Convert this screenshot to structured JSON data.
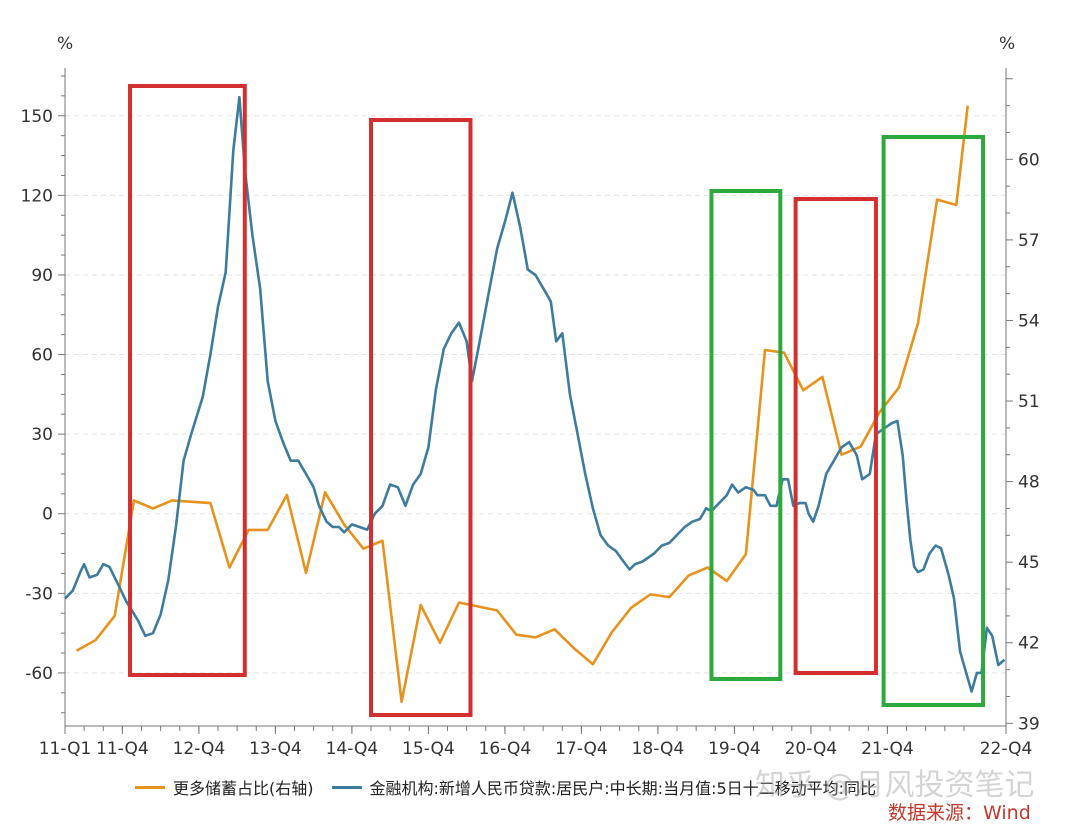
{
  "chart_data": {
    "type": "line",
    "left_axis": {
      "unit": "%",
      "ticks": [
        -60,
        -30,
        0,
        30,
        60,
        90,
        120,
        150
      ],
      "range": [
        -80,
        168
      ]
    },
    "right_axis": {
      "unit": "%",
      "ticks": [
        39,
        42,
        45,
        48,
        51,
        54,
        57,
        60
      ],
      "range": [
        38.9,
        63.4
      ]
    },
    "x_ticks": [
      "11-Q1",
      "11-Q4",
      "12-Q4",
      "13-Q4",
      "14-Q4",
      "15-Q4",
      "16-Q4",
      "17-Q4",
      "18-Q4",
      "19-Q4",
      "20-Q4",
      "21-Q4",
      "22-Q4"
    ],
    "x_range": [
      2011.0,
      2022.8
    ],
    "series": [
      {
        "name": "更多储蓄占比(右轴)",
        "axis": "right",
        "color": "#E8921E",
        "points": [
          [
            2011.15,
            41.7
          ],
          [
            2011.4,
            42.1
          ],
          [
            2011.65,
            43.0
          ],
          [
            2011.9,
            47.3
          ],
          [
            2012.15,
            47.0
          ],
          [
            2012.4,
            47.3
          ],
          [
            2012.9,
            47.2
          ],
          [
            2013.15,
            44.8
          ],
          [
            2013.4,
            46.2
          ],
          [
            2013.65,
            46.2
          ],
          [
            2013.9,
            47.5
          ],
          [
            2014.15,
            44.6
          ],
          [
            2014.4,
            47.6
          ],
          [
            2014.65,
            46.4
          ],
          [
            2014.9,
            45.5
          ],
          [
            2015.15,
            45.8
          ],
          [
            2015.4,
            39.8
          ],
          [
            2015.65,
            43.4
          ],
          [
            2015.9,
            42.0
          ],
          [
            2016.15,
            43.5
          ],
          [
            2016.65,
            43.2
          ],
          [
            2016.9,
            42.3
          ],
          [
            2017.15,
            42.2
          ],
          [
            2017.4,
            42.5
          ],
          [
            2017.65,
            41.8
          ],
          [
            2017.9,
            41.2
          ],
          [
            2018.15,
            42.4
          ],
          [
            2018.4,
            43.3
          ],
          [
            2018.65,
            43.8
          ],
          [
            2018.9,
            43.7
          ],
          [
            2019.15,
            44.5
          ],
          [
            2019.4,
            44.8
          ],
          [
            2019.65,
            44.3
          ],
          [
            2019.9,
            45.3
          ],
          [
            2020.15,
            52.9
          ],
          [
            2020.4,
            52.8
          ],
          [
            2020.65,
            51.4
          ],
          [
            2020.9,
            51.9
          ],
          [
            2021.15,
            49.0
          ],
          [
            2021.4,
            49.3
          ],
          [
            2021.65,
            50.6
          ],
          [
            2021.9,
            51.5
          ],
          [
            2022.15,
            53.9
          ],
          [
            2022.4,
            58.5
          ],
          [
            2022.65,
            58.3
          ],
          [
            2022.8,
            62.0
          ]
        ]
      },
      {
        "name": "金融机构:新增人民币贷款:居民户:中长期:当月值:5日十二移动平均:同比",
        "axis": "left",
        "color": "#3D7C9F",
        "points": [
          [
            2011.0,
            -32
          ],
          [
            2011.1,
            -29
          ],
          [
            2011.2,
            -22
          ],
          [
            2011.25,
            -19
          ],
          [
            2011.32,
            -24
          ],
          [
            2011.42,
            -23
          ],
          [
            2011.5,
            -19
          ],
          [
            2011.58,
            -20
          ],
          [
            2011.7,
            -27
          ],
          [
            2011.8,
            -33
          ],
          [
            2011.95,
            -40
          ],
          [
            2012.05,
            -46
          ],
          [
            2012.15,
            -45
          ],
          [
            2012.25,
            -38
          ],
          [
            2012.35,
            -25
          ],
          [
            2012.45,
            -5
          ],
          [
            2012.55,
            20
          ],
          [
            2012.65,
            30
          ],
          [
            2012.8,
            44
          ],
          [
            2012.9,
            60
          ],
          [
            2013.0,
            78
          ],
          [
            2013.1,
            91
          ],
          [
            2013.2,
            137
          ],
          [
            2013.28,
            157
          ],
          [
            2013.35,
            130
          ],
          [
            2013.45,
            105
          ],
          [
            2013.55,
            85
          ],
          [
            2013.65,
            50
          ],
          [
            2013.75,
            35
          ],
          [
            2013.85,
            27
          ],
          [
            2013.95,
            20
          ],
          [
            2014.05,
            20
          ],
          [
            2014.15,
            15
          ],
          [
            2014.25,
            10
          ],
          [
            2014.32,
            3
          ],
          [
            2014.42,
            -3
          ],
          [
            2014.5,
            -5
          ],
          [
            2014.58,
            -5
          ],
          [
            2014.65,
            -7
          ],
          [
            2014.75,
            -4
          ],
          [
            2014.85,
            -5
          ],
          [
            2014.95,
            -6
          ],
          [
            2015.05,
            0
          ],
          [
            2015.15,
            3
          ],
          [
            2015.25,
            11
          ],
          [
            2015.35,
            10
          ],
          [
            2015.45,
            3
          ],
          [
            2015.55,
            11
          ],
          [
            2015.65,
            15
          ],
          [
            2015.75,
            25
          ],
          [
            2015.85,
            47
          ],
          [
            2015.95,
            62
          ],
          [
            2016.05,
            68
          ],
          [
            2016.15,
            72
          ],
          [
            2016.25,
            65
          ],
          [
            2016.32,
            50
          ],
          [
            2016.42,
            65
          ],
          [
            2016.55,
            85
          ],
          [
            2016.65,
            100
          ],
          [
            2016.75,
            110
          ],
          [
            2016.85,
            121
          ],
          [
            2016.95,
            108
          ],
          [
            2017.05,
            92
          ],
          [
            2017.15,
            90
          ],
          [
            2017.25,
            85
          ],
          [
            2017.35,
            80
          ],
          [
            2017.42,
            65
          ],
          [
            2017.5,
            68
          ],
          [
            2017.6,
            45
          ],
          [
            2017.7,
            30
          ],
          [
            2017.8,
            15
          ],
          [
            2017.9,
            2
          ],
          [
            2018.0,
            -8
          ],
          [
            2018.1,
            -12
          ],
          [
            2018.2,
            -14
          ],
          [
            2018.3,
            -18
          ],
          [
            2018.38,
            -21
          ],
          [
            2018.45,
            -19
          ],
          [
            2018.55,
            -18
          ],
          [
            2018.7,
            -15
          ],
          [
            2018.8,
            -12
          ],
          [
            2018.9,
            -11
          ],
          [
            2019.0,
            -8
          ],
          [
            2019.1,
            -5
          ],
          [
            2019.2,
            -3
          ],
          [
            2019.3,
            -2
          ],
          [
            2019.38,
            2
          ],
          [
            2019.45,
            1
          ],
          [
            2019.55,
            4
          ],
          [
            2019.65,
            7
          ],
          [
            2019.72,
            11
          ],
          [
            2019.8,
            8
          ],
          [
            2019.9,
            10
          ],
          [
            2020.0,
            9
          ],
          [
            2020.05,
            7
          ],
          [
            2020.15,
            7
          ],
          [
            2020.22,
            3
          ],
          [
            2020.3,
            3
          ],
          [
            2020.38,
            13
          ],
          [
            2020.45,
            13
          ],
          [
            2020.52,
            3
          ],
          [
            2020.6,
            4
          ],
          [
            2020.68,
            4
          ],
          [
            2020.72,
            0
          ],
          [
            2020.78,
            -3
          ],
          [
            2020.85,
            3
          ],
          [
            2020.95,
            15
          ],
          [
            2021.05,
            20
          ],
          [
            2021.15,
            25
          ],
          [
            2021.25,
            27
          ],
          [
            2021.35,
            22
          ],
          [
            2021.42,
            13
          ],
          [
            2021.52,
            15
          ],
          [
            2021.6,
            30
          ],
          [
            2021.7,
            32
          ],
          [
            2021.8,
            34
          ],
          [
            2021.88,
            35
          ],
          [
            2021.95,
            22
          ],
          [
            2022.0,
            5
          ],
          [
            2022.05,
            -10
          ],
          [
            2022.1,
            -20
          ],
          [
            2022.15,
            -22
          ],
          [
            2022.22,
            -21
          ],
          [
            2022.3,
            -15
          ],
          [
            2022.38,
            -12
          ],
          [
            2022.45,
            -13
          ],
          [
            2022.55,
            -23
          ],
          [
            2022.62,
            -32
          ],
          [
            2022.7,
            -52
          ],
          [
            2022.78,
            -60
          ],
          [
            2022.85,
            -67
          ],
          [
            2022.92,
            -60
          ],
          [
            2022.98,
            -60
          ],
          [
            2023.05,
            -43
          ],
          [
            2023.12,
            -46
          ],
          [
            2023.2,
            -57
          ],
          [
            2023.28,
            -55
          ]
        ]
      }
    ],
    "annotations": [
      {
        "type": "box",
        "color": "#D32F2F",
        "left": {
          "x_from": 2011.85,
          "x_to": 2013.35
        }
      },
      {
        "type": "box",
        "color": "#D32F2F",
        "left": {
          "x_from": 2015.0,
          "x_to": 2016.3
        }
      },
      {
        "type": "box",
        "color": "#2EAA3D",
        "left": {
          "x_from": 2019.45,
          "x_to": 2020.35
        }
      },
      {
        "type": "box",
        "color": "#D32F2F",
        "left": {
          "x_from": 2020.55,
          "x_to": 2021.6
        }
      },
      {
        "type": "box",
        "color": "#2EAA3D",
        "left": {
          "x_from": 2021.7,
          "x_to": 2023.0
        }
      }
    ]
  },
  "legend": {
    "items": [
      {
        "label": "更多储蓄占比(右轴)",
        "color": "#E8921E"
      },
      {
        "label": "金融机构:新增人民币贷款:居民户:中长期:当月值:5日十二移动平均:同比",
        "color": "#3D7C9F"
      }
    ]
  },
  "source": "数据来源：Wind",
  "watermark": "知乎 @月风投资笔记"
}
